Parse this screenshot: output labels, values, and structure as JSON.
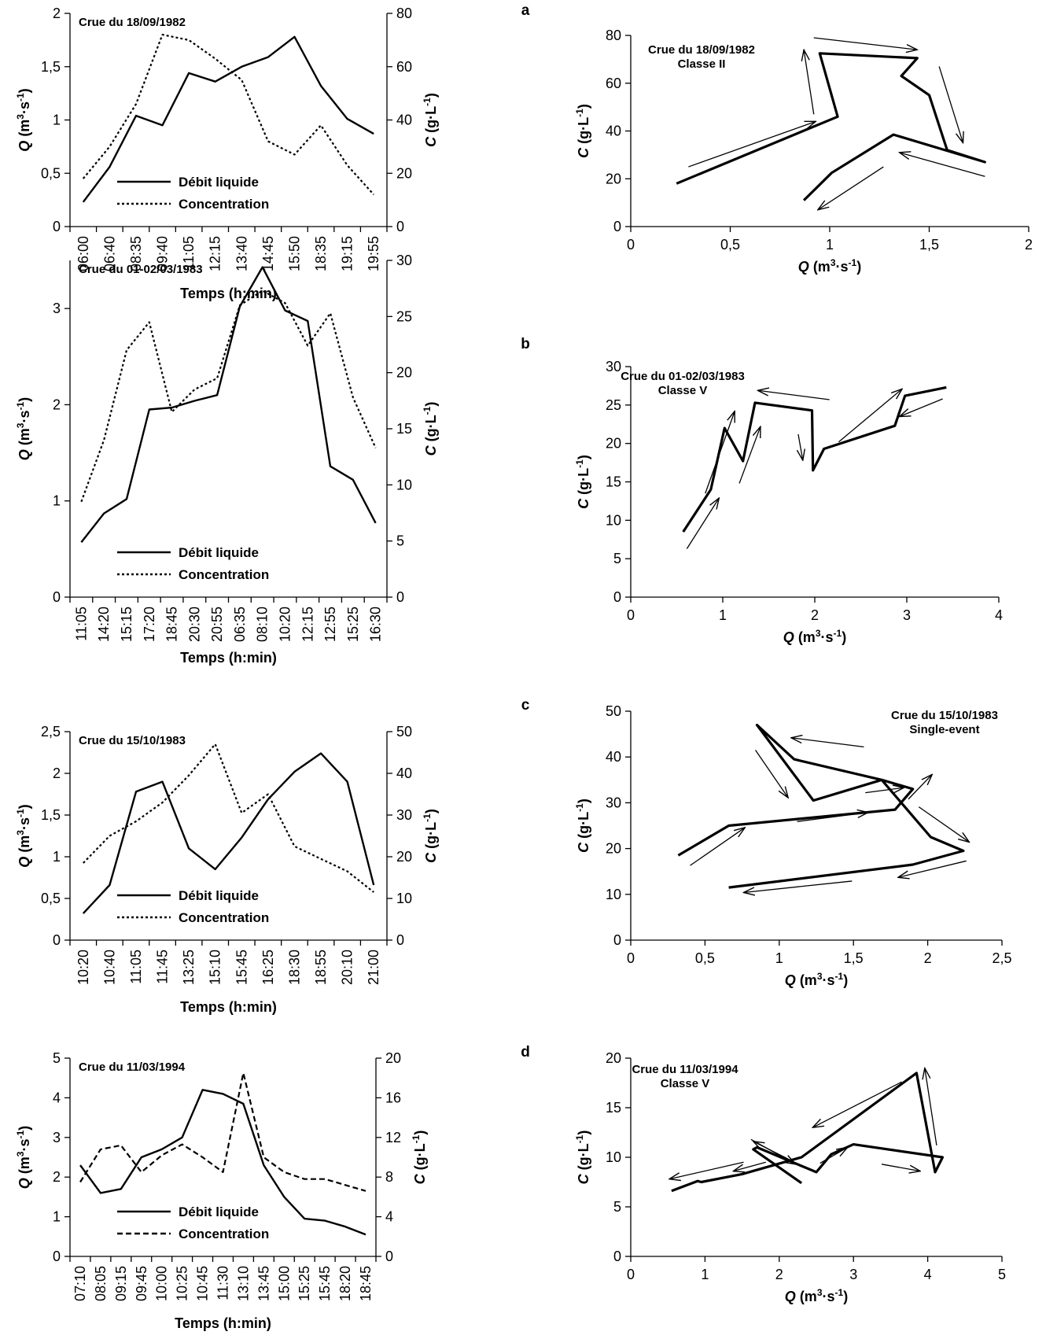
{
  "chart_data": [
    {
      "type": "line",
      "title": "Crue du 18/09/1982",
      "xlabel": "Temps (h:min)",
      "ylabel": "Q (m³·s⁻¹)",
      "y2label": "C (g·L⁻¹)",
      "categories": [
        "06:00",
        "06:40",
        "08:35",
        "09:40",
        "11:05",
        "12:15",
        "13:40",
        "14:45",
        "15:50",
        "18:35",
        "19:15",
        "19:55"
      ],
      "ylim": [
        0,
        2
      ],
      "yticks": [
        "0",
        "0,5",
        "1",
        "1,5",
        "2"
      ],
      "y2lim": [
        0,
        80
      ],
      "y2ticks": [
        "0",
        "20",
        "40",
        "60",
        "80"
      ],
      "series": [
        {
          "name": "Débit liquide",
          "axis": "left",
          "style": "solid",
          "values": [
            0.23,
            0.56,
            1.04,
            0.95,
            1.44,
            1.36,
            1.5,
            1.59,
            1.78,
            1.32,
            1.01,
            0.87
          ]
        },
        {
          "name": "Concentration",
          "axis": "right",
          "style": "dotted",
          "values": [
            18,
            30,
            46,
            72,
            70,
            63,
            55,
            32,
            27,
            38,
            23,
            12
          ]
        }
      ],
      "legend": "bottom-left"
    },
    {
      "type": "line",
      "title": "Crue du 01-02/03/1983",
      "xlabel": "Temps (h:min)",
      "ylabel": "Q (m³·s⁻¹)",
      "y2label": "C (g·L⁻¹)",
      "categories": [
        "11:05",
        "14:20",
        "15:15",
        "17:20",
        "18:45",
        "20:30",
        "20:55",
        "06:35",
        "08:10",
        "10:20",
        "12:15",
        "12:55",
        "15:25",
        "16:30"
      ],
      "ylim": [
        0,
        3.5
      ],
      "yticks": [
        "0",
        "1",
        "2",
        "3"
      ],
      "yticks_at": [
        0,
        1,
        2,
        3
      ],
      "y2lim": [
        0,
        30
      ],
      "y2ticks": [
        "0",
        "5",
        "10",
        "15",
        "20",
        "25",
        "30"
      ],
      "series": [
        {
          "name": "Débit liquide",
          "axis": "left",
          "style": "solid",
          "values": [
            0.57,
            0.87,
            1.02,
            1.95,
            1.97,
            2.04,
            2.1,
            3.02,
            3.43,
            2.98,
            2.87,
            1.36,
            1.22,
            0.77
          ]
        },
        {
          "name": "Concentration",
          "axis": "right",
          "style": "dotted",
          "values": [
            8.5,
            14,
            22,
            24.5,
            16.5,
            18.5,
            19.5,
            26,
            27.3,
            26.2,
            22.4,
            25.3,
            17.8,
            13.3
          ]
        }
      ],
      "legend": "bottom-left"
    },
    {
      "type": "line",
      "title": "Crue du 15/10/1983",
      "xlabel": "Temps (h:min)",
      "ylabel": "Q (m³·s⁻¹)",
      "y2label": "C (g·L⁻¹)",
      "categories": [
        "10:20",
        "10:40",
        "11:05",
        "11:45",
        "13:25",
        "15:10",
        "15:45",
        "16:25",
        "18:30",
        "18:55",
        "20:10",
        "21:00"
      ],
      "ylim": [
        0,
        2.5
      ],
      "yticks": [
        "0",
        "0,5",
        "1",
        "1,5",
        "2",
        "2,5"
      ],
      "y2lim": [
        0,
        50
      ],
      "y2ticks": [
        "0",
        "10",
        "20",
        "30",
        "40",
        "50"
      ],
      "series": [
        {
          "name": "Débit liquide",
          "axis": "left",
          "style": "solid",
          "values": [
            0.32,
            0.66,
            1.78,
            1.9,
            1.1,
            0.85,
            1.23,
            1.69,
            2.02,
            2.24,
            1.9,
            0.66
          ]
        },
        {
          "name": "Concentration",
          "axis": "right",
          "style": "dotted",
          "values": [
            18.5,
            25,
            28.5,
            33,
            39.5,
            47,
            30.5,
            35,
            22.5,
            19.5,
            16.5,
            11.5
          ]
        }
      ],
      "legend": "bottom-left"
    },
    {
      "type": "line",
      "title": "Crue du 11/03/1994",
      "xlabel": "Temps (h:min)",
      "ylabel": "Q (m³·s⁻¹)",
      "y2label": "C (g·L⁻¹)",
      "categories": [
        "07:10",
        "08:05",
        "09:15",
        "09:45",
        "10:00",
        "10:25",
        "10:45",
        "11:30",
        "13:10",
        "13:45",
        "15:00",
        "15:25",
        "15:45",
        "18:20",
        "18:45"
      ],
      "ylim": [
        0,
        5
      ],
      "yticks": [
        "0",
        "1",
        "2",
        "3",
        "4",
        "5"
      ],
      "y2lim": [
        0,
        20
      ],
      "y2ticks": [
        "0",
        "4",
        "8",
        "12",
        "16",
        "20"
      ],
      "series": [
        {
          "name": "Débit liquide",
          "axis": "left",
          "style": "solid",
          "values": [
            2.3,
            1.6,
            1.7,
            2.5,
            2.7,
            3.0,
            4.2,
            4.1,
            3.85,
            2.3,
            1.5,
            0.95,
            0.9,
            0.75,
            0.55
          ]
        },
        {
          "name": "Concentration",
          "axis": "right",
          "style": "dashed",
          "values": [
            7.5,
            10.8,
            11.2,
            8.5,
            10.2,
            11.3,
            10,
            8.5,
            18.5,
            10,
            8.5,
            7.8,
            7.8,
            7.2,
            6.6
          ]
        }
      ],
      "legend": "bottom-left"
    },
    {
      "type": "scatter",
      "panel": "a",
      "title": "Crue du 18/09/1982",
      "subtitle": "Classe II",
      "xlabel": "Q (m³·s⁻¹)",
      "ylabel": "C (g·L⁻¹)",
      "xlim": [
        0,
        2
      ],
      "xticks": [
        "0",
        "0,5",
        "1",
        "1,5",
        "2"
      ],
      "ylim": [
        0,
        80
      ],
      "yticks": [
        "0",
        "20",
        "40",
        "60",
        "80"
      ],
      "points": [
        [
          0.23,
          18
        ],
        [
          1.04,
          46
        ],
        [
          0.95,
          72.5
        ],
        [
          1.44,
          70.5
        ],
        [
          1.36,
          63
        ],
        [
          1.5,
          55
        ],
        [
          1.59,
          32
        ],
        [
          1.78,
          27
        ],
        [
          1.32,
          38.5
        ],
        [
          1.01,
          22.5
        ],
        [
          0.87,
          11
        ]
      ],
      "arrows": [
        [
          0.29,
          25,
          0.93,
          44
        ],
        [
          0.92,
          47,
          0.87,
          74
        ],
        [
          0.92,
          79,
          1.44,
          74
        ],
        [
          1.55,
          67,
          1.67,
          35
        ],
        [
          1.78,
          21,
          1.35,
          31
        ],
        [
          1.27,
          25,
          0.94,
          7
        ]
      ]
    },
    {
      "type": "scatter",
      "panel": "b",
      "title": "Crue du 01-02/03/1983",
      "subtitle": "Classe V",
      "xlabel": "Q (m³·s⁻¹)",
      "ylabel": "C (g·L⁻¹)",
      "xlim": [
        0,
        4
      ],
      "xticks": [
        "0",
        "1",
        "2",
        "3",
        "4"
      ],
      "ylim": [
        0,
        30
      ],
      "yticks": [
        "0",
        "5",
        "10",
        "15",
        "20",
        "25",
        "30"
      ],
      "points": [
        [
          0.57,
          8.5
        ],
        [
          0.87,
          14
        ],
        [
          1.02,
          22
        ],
        [
          1.22,
          17.7
        ],
        [
          1.35,
          25.3
        ],
        [
          1.97,
          24.3
        ],
        [
          1.98,
          16.5
        ],
        [
          2.1,
          19.3
        ],
        [
          2.87,
          22.3
        ],
        [
          2.98,
          26.2
        ],
        [
          3.43,
          27.3
        ]
      ],
      "arrows": [
        [
          0.61,
          6.3,
          0.96,
          12.9
        ],
        [
          0.81,
          13.5,
          1.13,
          24.2
        ],
        [
          1.18,
          14.8,
          1.41,
          22.2
        ],
        [
          2.16,
          25.7,
          1.38,
          26.9
        ],
        [
          1.82,
          21.2,
          1.87,
          17.8
        ],
        [
          2.26,
          20.2,
          2.95,
          27.1
        ],
        [
          3.39,
          25.8,
          2.92,
          23.5
        ]
      ]
    },
    {
      "type": "scatter",
      "panel": "c",
      "title": "Crue du 15/10/1983",
      "subtitle": "Single-event",
      "xlabel": "Q (m³·s⁻¹)",
      "ylabel": "C (g·L⁻¹)",
      "xlim": [
        0,
        2.5
      ],
      "xticks": [
        "0",
        "0,5",
        "1",
        "1,5",
        "2",
        "2,5"
      ],
      "ylim": [
        0,
        50
      ],
      "yticks": [
        "0",
        "10",
        "20",
        "30",
        "40",
        "50"
      ],
      "points": [
        [
          0.32,
          18.5
        ],
        [
          0.66,
          25
        ],
        [
          1.78,
          28.5
        ],
        [
          1.9,
          33
        ],
        [
          1.69,
          35
        ],
        [
          1.23,
          30.5
        ],
        [
          0.85,
          47
        ],
        [
          1.1,
          39.5
        ],
        [
          1.69,
          35
        ],
        [
          2.02,
          22.5
        ],
        [
          2.24,
          19.5
        ],
        [
          1.9,
          16.5
        ],
        [
          0.66,
          11.5
        ]
      ],
      "arrows": [
        [
          0.4,
          16.3,
          0.77,
          24.6
        ],
        [
          1.12,
          25.9,
          1.6,
          27.9
        ],
        [
          0.84,
          41.5,
          1.06,
          31.1
        ],
        [
          1.57,
          42.2,
          1.08,
          44.2
        ],
        [
          1.58,
          32.2,
          1.84,
          33.3
        ],
        [
          1.87,
          30.8,
          2.03,
          36.2
        ],
        [
          1.94,
          29.1,
          2.28,
          21.4
        ],
        [
          2.26,
          17.3,
          1.8,
          13.7
        ],
        [
          1.49,
          12.9,
          0.76,
          10.4
        ]
      ]
    },
    {
      "type": "scatter",
      "panel": "d",
      "title": "Crue du 11/03/1994",
      "subtitle": "Classe  V",
      "xlabel": "Q (m³·s⁻¹)",
      "ylabel": "C (g·L⁻¹)",
      "xlim": [
        0,
        5
      ],
      "xticks": [
        "0",
        "1",
        "2",
        "3",
        "4",
        "5"
      ],
      "ylim": [
        0,
        20
      ],
      "yticks": [
        "0",
        "5",
        "10",
        "15",
        "20"
      ],
      "points": [
        [
          0.55,
          6.6
        ],
        [
          0.9,
          7.6
        ],
        [
          0.95,
          7.5
        ],
        [
          1.5,
          8.3
        ],
        [
          2.3,
          10
        ],
        [
          3.85,
          18.5
        ],
        [
          4.1,
          8.5
        ],
        [
          4.2,
          10
        ],
        [
          3.0,
          11.3
        ],
        [
          2.7,
          10.3
        ],
        [
          2.5,
          8.5
        ],
        [
          1.7,
          11
        ],
        [
          1.65,
          10.8
        ],
        [
          2.3,
          7.4
        ]
      ],
      "arrows": [
        [
          1.52,
          9.5,
          0.52,
          7.8
        ],
        [
          3.65,
          17.6,
          2.45,
          13.0
        ],
        [
          2.18,
          9.6,
          1.65,
          11.6
        ],
        [
          1.62,
          11.8,
          2.22,
          9.3
        ],
        [
          1.82,
          9.5,
          1.38,
          8.6
        ],
        [
          2.55,
          9.4,
          2.92,
          11.0
        ],
        [
          3.38,
          9.3,
          3.9,
          8.6
        ],
        [
          4.12,
          11.2,
          3.96,
          19.0
        ]
      ]
    }
  ]
}
